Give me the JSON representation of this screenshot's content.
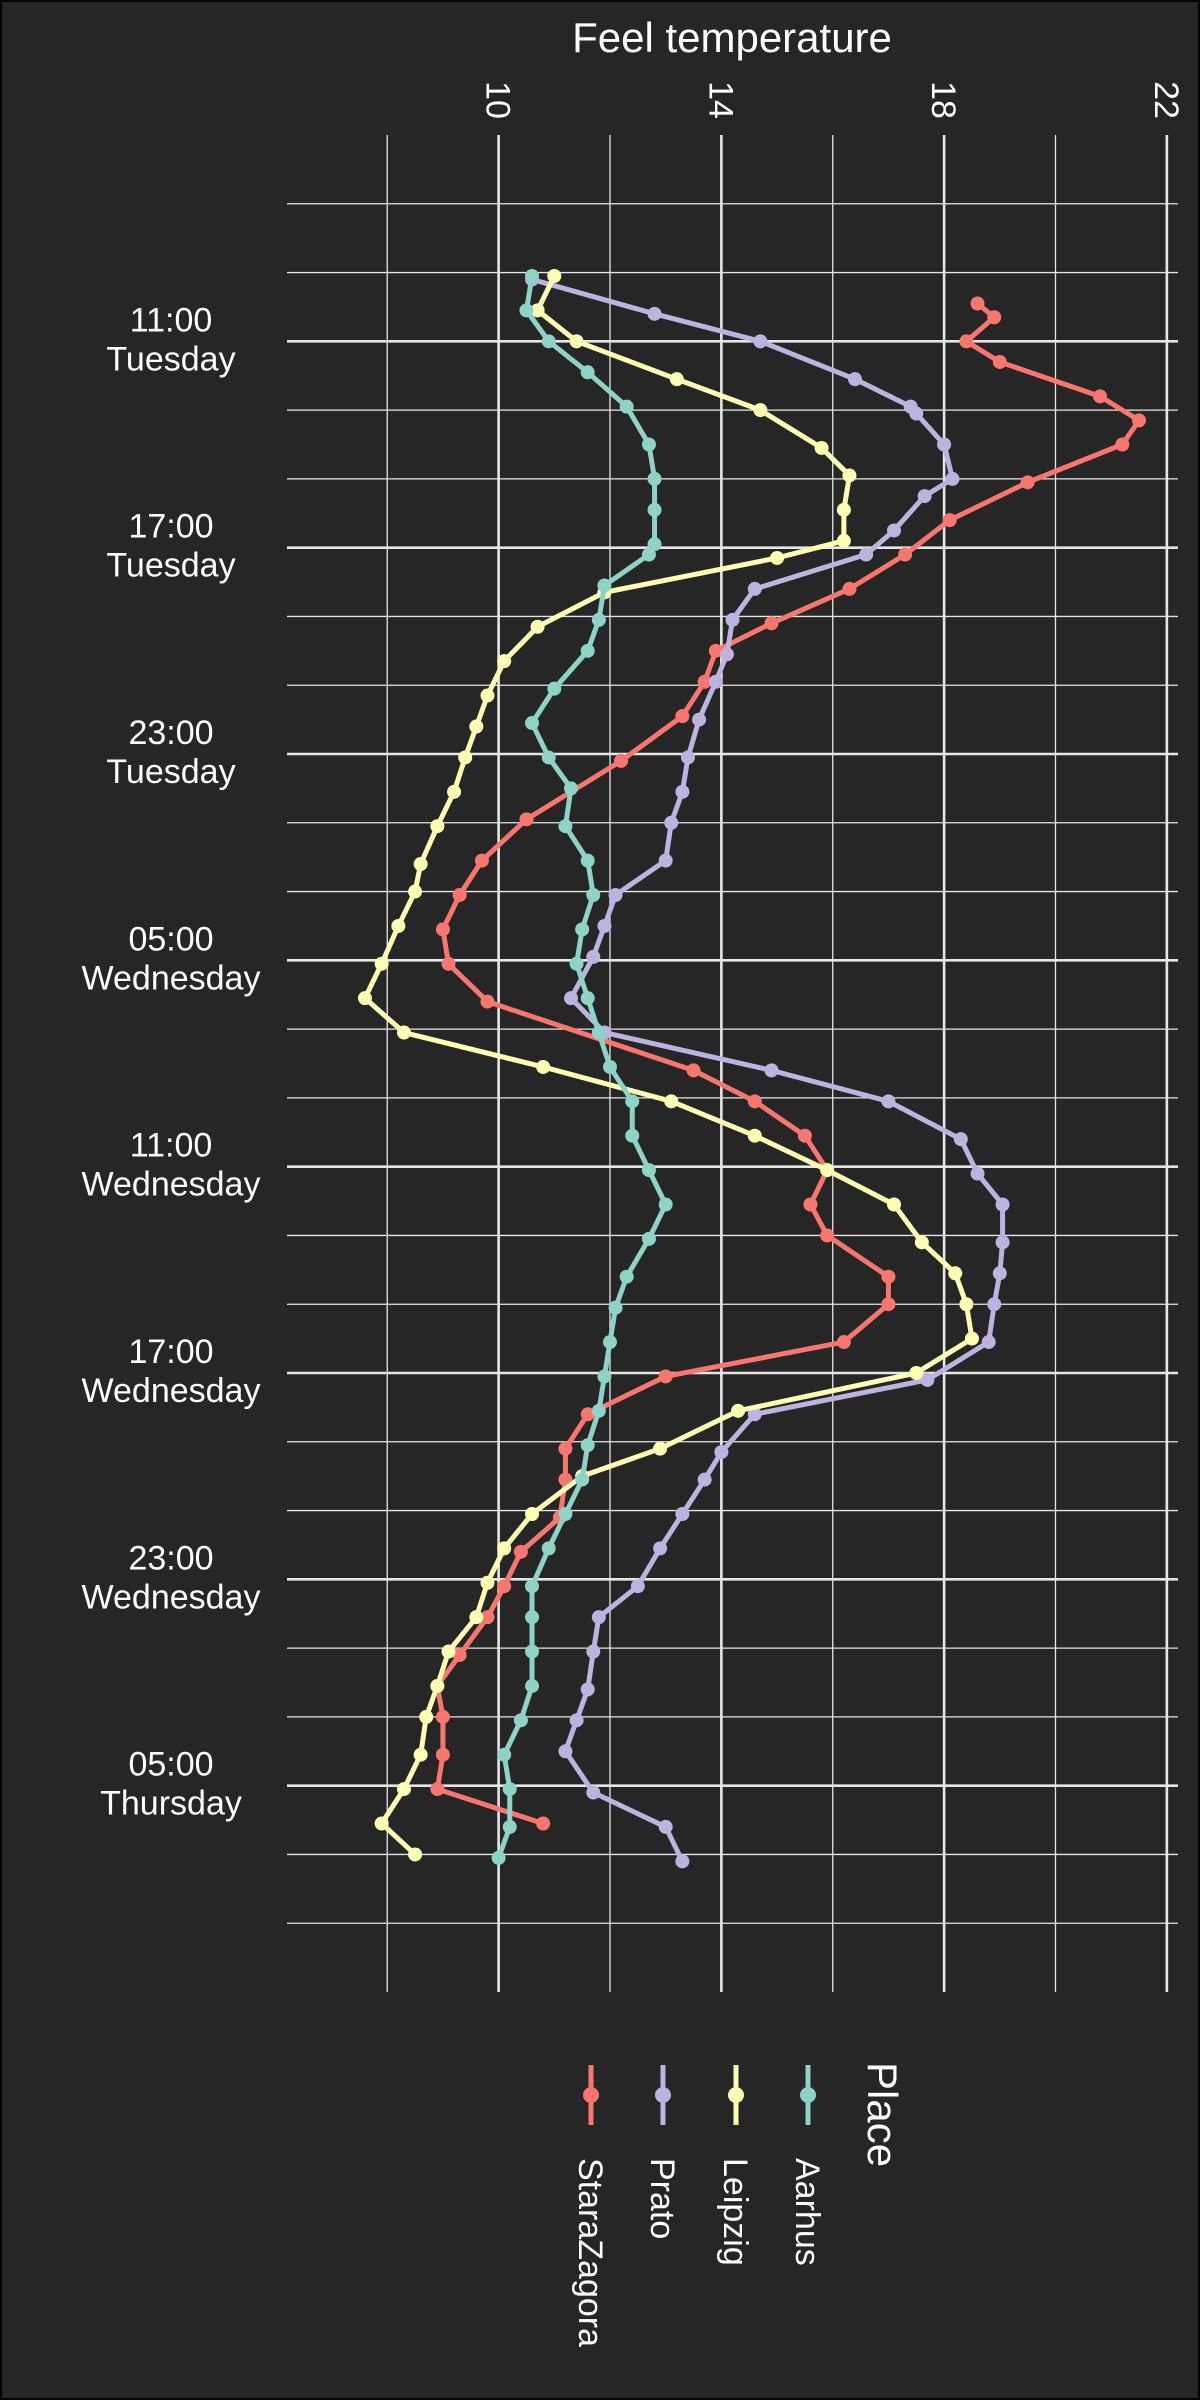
{
  "chart_data": {
    "type": "line",
    "title": "",
    "xlabel": "Feel temperature",
    "ylabel": "",
    "orientation": "rotated",
    "temp_ticks": [
      10,
      14,
      18,
      22
    ],
    "temp_range": [
      6.2,
      22.2
    ],
    "time_ticks": [
      {
        "index": 2,
        "time": "11:00",
        "day": "Tuesday"
      },
      {
        "index": 5,
        "time": "17:00",
        "day": "Tuesday"
      },
      {
        "index": 8,
        "time": "23:00",
        "day": "Tuesday"
      },
      {
        "index": 11,
        "time": "05:00",
        "day": "Wednesday"
      },
      {
        "index": 14,
        "time": "11:00",
        "day": "Wednesday"
      },
      {
        "index": 17,
        "time": "17:00",
        "day": "Wednesday"
      },
      {
        "index": 20,
        "time": "23:00",
        "day": "Wednesday"
      },
      {
        "index": 23,
        "time": "05:00",
        "day": "Thursday"
      }
    ],
    "time_range": [
      -1.0,
      26.0
    ],
    "start_time": "08:00 Tuesday",
    "step_hours": 1,
    "legend": {
      "title": "Place",
      "position": "bottom"
    },
    "grid": true,
    "series": [
      {
        "name": "StaraZagora",
        "color": "#f8766d",
        "values": [
          [
            1.45,
            18.6
          ],
          [
            1.65,
            18.9
          ],
          [
            2.0,
            18.4
          ],
          [
            2.3,
            19.0
          ],
          [
            2.8,
            20.8
          ],
          [
            3.15,
            21.5
          ],
          [
            3.5,
            21.2
          ],
          [
            4.05,
            19.5
          ],
          [
            4.6,
            18.1
          ],
          [
            5.1,
            17.3
          ],
          [
            5.6,
            16.3
          ],
          [
            6.1,
            14.9
          ],
          [
            6.5,
            13.9
          ],
          [
            6.95,
            13.7
          ],
          [
            7.45,
            13.3
          ],
          [
            8.1,
            12.2
          ],
          [
            8.95,
            10.5
          ],
          [
            9.55,
            9.7
          ],
          [
            10.05,
            9.3
          ],
          [
            10.55,
            9.0
          ],
          [
            11.05,
            9.1
          ],
          [
            11.6,
            9.8
          ],
          [
            12.6,
            13.5
          ],
          [
            13.05,
            14.6
          ],
          [
            13.55,
            15.5
          ],
          [
            14.05,
            15.9
          ],
          [
            14.55,
            15.6
          ],
          [
            15.0,
            15.9
          ],
          [
            15.6,
            17.0
          ],
          [
            16.0,
            17.0
          ],
          [
            16.55,
            16.2
          ],
          [
            17.05,
            13.0
          ],
          [
            17.6,
            11.6
          ],
          [
            18.1,
            11.2
          ],
          [
            18.55,
            11.2
          ],
          [
            19.1,
            11.1
          ],
          [
            19.6,
            10.4
          ],
          [
            20.1,
            10.1
          ],
          [
            20.55,
            9.8
          ],
          [
            21.1,
            9.3
          ],
          [
            21.55,
            8.9
          ],
          [
            22.0,
            9.0
          ],
          [
            22.55,
            9.0
          ],
          [
            23.05,
            8.9
          ],
          [
            23.55,
            10.8
          ]
        ]
      },
      {
        "name": "Prato",
        "color": "#bcb3e0",
        "values": [
          [
            1.1,
            10.6
          ],
          [
            1.6,
            12.8
          ],
          [
            2.0,
            14.7
          ],
          [
            2.55,
            16.4
          ],
          [
            2.95,
            17.4
          ],
          [
            3.05,
            17.5
          ],
          [
            3.5,
            18.0
          ],
          [
            4.0,
            18.15
          ],
          [
            4.25,
            17.65
          ],
          [
            4.75,
            17.1
          ],
          [
            5.1,
            16.6
          ],
          [
            5.6,
            14.6
          ],
          [
            6.05,
            14.2
          ],
          [
            6.55,
            14.1
          ],
          [
            6.95,
            13.9
          ],
          [
            7.5,
            13.6
          ],
          [
            8.05,
            13.4
          ],
          [
            8.55,
            13.3
          ],
          [
            9.0,
            13.1
          ],
          [
            9.55,
            13.0
          ],
          [
            10.05,
            12.1
          ],
          [
            10.5,
            11.9
          ],
          [
            10.95,
            11.7
          ],
          [
            11.55,
            11.3
          ],
          [
            12.05,
            11.9
          ],
          [
            12.6,
            14.9
          ],
          [
            13.05,
            17.0
          ],
          [
            13.6,
            18.3
          ],
          [
            14.1,
            18.6
          ],
          [
            14.55,
            19.05
          ],
          [
            15.1,
            19.05
          ],
          [
            15.55,
            19.0
          ],
          [
            16.0,
            18.9
          ],
          [
            16.55,
            18.8
          ],
          [
            17.1,
            17.7
          ],
          [
            17.6,
            14.6
          ],
          [
            18.15,
            14.0
          ],
          [
            18.55,
            13.7
          ],
          [
            19.05,
            13.3
          ],
          [
            19.55,
            12.9
          ],
          [
            20.1,
            12.5
          ],
          [
            20.55,
            11.8
          ],
          [
            21.05,
            11.7
          ],
          [
            21.6,
            11.6
          ],
          [
            22.05,
            11.4
          ],
          [
            22.5,
            11.2
          ],
          [
            23.1,
            11.7
          ],
          [
            23.6,
            13.0
          ],
          [
            24.1,
            13.3
          ]
        ]
      },
      {
        "name": "Leipzig",
        "color": "#ffffb3",
        "values": [
          [
            1.05,
            11.0
          ],
          [
            1.55,
            10.7
          ],
          [
            2.0,
            11.4
          ],
          [
            2.55,
            13.2
          ],
          [
            3.0,
            14.7
          ],
          [
            3.55,
            15.8
          ],
          [
            3.95,
            16.3
          ],
          [
            4.45,
            16.2
          ],
          [
            4.9,
            16.2
          ],
          [
            5.15,
            15.0
          ],
          [
            5.65,
            11.9
          ],
          [
            6.15,
            10.7
          ],
          [
            6.65,
            10.1
          ],
          [
            7.15,
            9.8
          ],
          [
            7.6,
            9.6
          ],
          [
            8.05,
            9.4
          ],
          [
            8.55,
            9.2
          ],
          [
            9.05,
            8.9
          ],
          [
            9.6,
            8.6
          ],
          [
            10.0,
            8.5
          ],
          [
            10.5,
            8.2
          ],
          [
            11.05,
            7.9
          ],
          [
            11.55,
            7.6
          ],
          [
            12.05,
            8.3
          ],
          [
            12.55,
            10.8
          ],
          [
            13.05,
            13.1
          ],
          [
            13.55,
            14.6
          ],
          [
            14.05,
            15.9
          ],
          [
            14.55,
            17.1
          ],
          [
            15.1,
            17.6
          ],
          [
            15.55,
            18.2
          ],
          [
            16.0,
            18.4
          ],
          [
            16.5,
            18.5
          ],
          [
            17.0,
            17.5
          ],
          [
            17.55,
            14.3
          ],
          [
            18.1,
            12.9
          ],
          [
            18.5,
            11.5
          ],
          [
            19.05,
            10.6
          ],
          [
            19.55,
            10.1
          ],
          [
            20.05,
            9.8
          ],
          [
            20.55,
            9.6
          ],
          [
            21.05,
            9.1
          ],
          [
            21.55,
            8.9
          ],
          [
            22.0,
            8.7
          ],
          [
            22.55,
            8.6
          ],
          [
            23.05,
            8.3
          ],
          [
            23.55,
            7.9
          ],
          [
            24.0,
            8.5
          ]
        ]
      },
      {
        "name": "Aarhus",
        "color": "#8dd3c7",
        "values": [
          [
            1.05,
            10.6
          ],
          [
            1.55,
            10.5
          ],
          [
            2.0,
            10.9
          ],
          [
            2.45,
            11.6
          ],
          [
            2.95,
            12.3
          ],
          [
            3.5,
            12.7
          ],
          [
            4.0,
            12.8
          ],
          [
            4.45,
            12.8
          ],
          [
            4.95,
            12.8
          ],
          [
            5.1,
            12.7
          ],
          [
            5.55,
            11.9
          ],
          [
            6.05,
            11.8
          ],
          [
            6.5,
            11.6
          ],
          [
            7.05,
            11.0
          ],
          [
            7.55,
            10.6
          ],
          [
            8.05,
            10.9
          ],
          [
            8.5,
            11.3
          ],
          [
            9.05,
            11.2
          ],
          [
            9.55,
            11.6
          ],
          [
            10.05,
            11.7
          ],
          [
            10.55,
            11.5
          ],
          [
            11.05,
            11.4
          ],
          [
            11.55,
            11.6
          ],
          [
            12.05,
            11.8
          ],
          [
            12.55,
            12.0
          ],
          [
            13.05,
            12.4
          ],
          [
            13.55,
            12.4
          ],
          [
            14.05,
            12.7
          ],
          [
            14.55,
            13.0
          ],
          [
            15.05,
            12.7
          ],
          [
            15.6,
            12.3
          ],
          [
            16.05,
            12.1
          ],
          [
            16.55,
            12.0
          ],
          [
            17.05,
            11.9
          ],
          [
            17.55,
            11.8
          ],
          [
            18.05,
            11.6
          ],
          [
            18.55,
            11.5
          ],
          [
            19.05,
            11.2
          ],
          [
            19.55,
            10.9
          ],
          [
            20.1,
            10.6
          ],
          [
            20.55,
            10.6
          ],
          [
            21.05,
            10.6
          ],
          [
            21.55,
            10.6
          ],
          [
            22.05,
            10.4
          ],
          [
            22.55,
            10.1
          ],
          [
            23.05,
            10.2
          ],
          [
            23.6,
            10.2
          ],
          [
            24.05,
            10.0
          ]
        ]
      }
    ]
  }
}
